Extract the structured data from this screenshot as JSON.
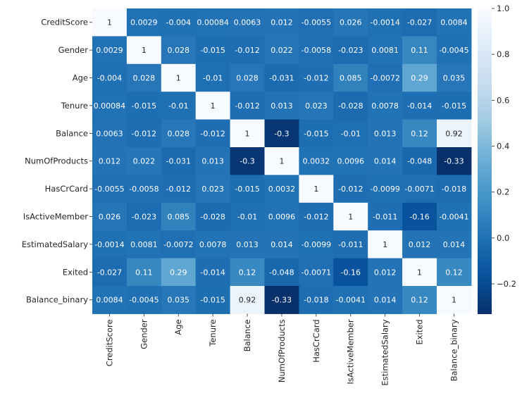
{
  "chart_data": {
    "type": "heatmap",
    "title": "",
    "xlabel": "",
    "ylabel": "",
    "labels": [
      "CreditScore",
      "Gender",
      "Age",
      "Tenure",
      "Balance",
      "NumOfProducts",
      "HasCrCard",
      "IsActiveMember",
      "EstimatedSalary",
      "Exited",
      "Balance_binary"
    ],
    "cell_labels": [
      [
        "1",
        "0.0029",
        "-0.004",
        "0.00084",
        "0.0063",
        "0.012",
        "-0.0055",
        "0.026",
        "-0.0014",
        "-0.027",
        "0.0084"
      ],
      [
        "0.0029",
        "1",
        "0.028",
        "-0.015",
        "-0.012",
        "0.022",
        "-0.0058",
        "-0.023",
        "0.0081",
        "0.11",
        "-0.0045"
      ],
      [
        "-0.004",
        "0.028",
        "1",
        "-0.01",
        "0.028",
        "-0.031",
        "-0.012",
        "0.085",
        "-0.0072",
        "0.29",
        "0.035"
      ],
      [
        "0.00084",
        "-0.015",
        "-0.01",
        "1",
        "-0.012",
        "0.013",
        "0.023",
        "-0.028",
        "0.0078",
        "-0.014",
        "-0.015"
      ],
      [
        "0.0063",
        "-0.012",
        "0.028",
        "-0.012",
        "1",
        "-0.3",
        "-0.015",
        "-0.01",
        "0.013",
        "0.12",
        "0.92"
      ],
      [
        "0.012",
        "0.022",
        "-0.031",
        "0.013",
        "-0.3",
        "1",
        "0.0032",
        "0.0096",
        "0.014",
        "-0.048",
        "-0.33"
      ],
      [
        "-0.0055",
        "-0.0058",
        "-0.012",
        "0.023",
        "-0.015",
        "0.0032",
        "1",
        "-0.012",
        "-0.0099",
        "-0.0071",
        "-0.018"
      ],
      [
        "0.026",
        "-0.023",
        "0.085",
        "-0.028",
        "-0.01",
        "0.0096",
        "-0.012",
        "1",
        "-0.011",
        "-0.16",
        "-0.0041"
      ],
      [
        "-0.0014",
        "0.0081",
        "-0.0072",
        "0.0078",
        "0.013",
        "0.014",
        "-0.0099",
        "-0.011",
        "1",
        "0.012",
        "0.014"
      ],
      [
        "-0.027",
        "0.11",
        "0.29",
        "-0.014",
        "0.12",
        "-0.048",
        "-0.0071",
        "-0.16",
        "0.012",
        "1",
        "0.12"
      ],
      [
        "0.0084",
        "-0.0045",
        "0.035",
        "-0.015",
        "0.92",
        "-0.33",
        "-0.018",
        "-0.0041",
        "0.014",
        "0.12",
        "1"
      ]
    ],
    "colorscale": {
      "name": "Blues_r",
      "vmin": -0.33,
      "vmax": 1.0,
      "ticks": [
        "1.0",
        "0.8",
        "0.6",
        "0.4",
        "0.2",
        "0.0",
        "−0.2"
      ],
      "tick_values": [
        1.0,
        0.8,
        0.6,
        0.4,
        0.2,
        0.0,
        -0.2
      ]
    }
  }
}
